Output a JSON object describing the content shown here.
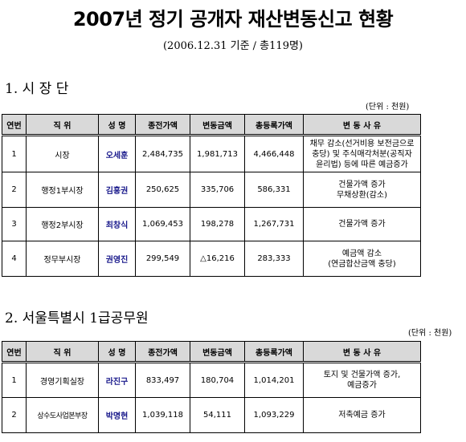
{
  "header": {
    "title": "2007년 정기 공개자 재산변동신고 현황",
    "subtitle": "(2006.12.31 기준 / 총119명)"
  },
  "columns": {
    "no": "연번",
    "position": "직 위",
    "name": "성 명",
    "prev_value": "종전가액",
    "change_value": "변동금액",
    "total_value": "총등록가액",
    "reason": "변 동 사 유"
  },
  "sections": [
    {
      "heading": "1. 시 장 단",
      "unit": "(단위 : 천원)",
      "rows": [
        {
          "no": "1",
          "position": "시장",
          "name": "오세훈",
          "prev": "2,484,735",
          "change": "1,981,713",
          "total": "4,466,448",
          "reason": [
            "채무 감소(선거비용 보전금으로",
            "충당) 및 주식매각처분(공직자",
            "윤리법) 등에 따른 예금증가"
          ]
        },
        {
          "no": "2",
          "position": "행정1부시장",
          "name": "김흥권",
          "prev": "250,625",
          "change": "335,706",
          "total": "586,331",
          "reason": [
            "건물가액 증가",
            "무채상환(감소)"
          ]
        },
        {
          "no": "3",
          "position": "행정2부시장",
          "name": "최창식",
          "prev": "1,069,453",
          "change": "198,278",
          "total": "1,267,731",
          "reason": [
            "건물가액 증가"
          ]
        },
        {
          "no": "4",
          "position": "정무부시장",
          "name": "권영진",
          "prev": "299,549",
          "change": "△16,216",
          "total": "283,333",
          "reason": [
            "예금액 감소",
            "(연금합산금액 충당)"
          ]
        }
      ]
    },
    {
      "heading": "2. 서울특별시 1급공무원",
      "unit": "(단위 : 천원)",
      "rows": [
        {
          "no": "1",
          "position": "경영기획실장",
          "name": "라진구",
          "prev": "833,497",
          "change": "180,704",
          "total": "1,014,201",
          "reason": [
            "토지 및 건물가액 증가,",
            "예금증가"
          ]
        },
        {
          "no": "2",
          "position": "상수도사업본부장",
          "name": "박명현",
          "prev": "1,039,118",
          "change": "54,111",
          "total": "1,093,229",
          "reason": [
            "저축예금 증가"
          ]
        }
      ]
    }
  ]
}
